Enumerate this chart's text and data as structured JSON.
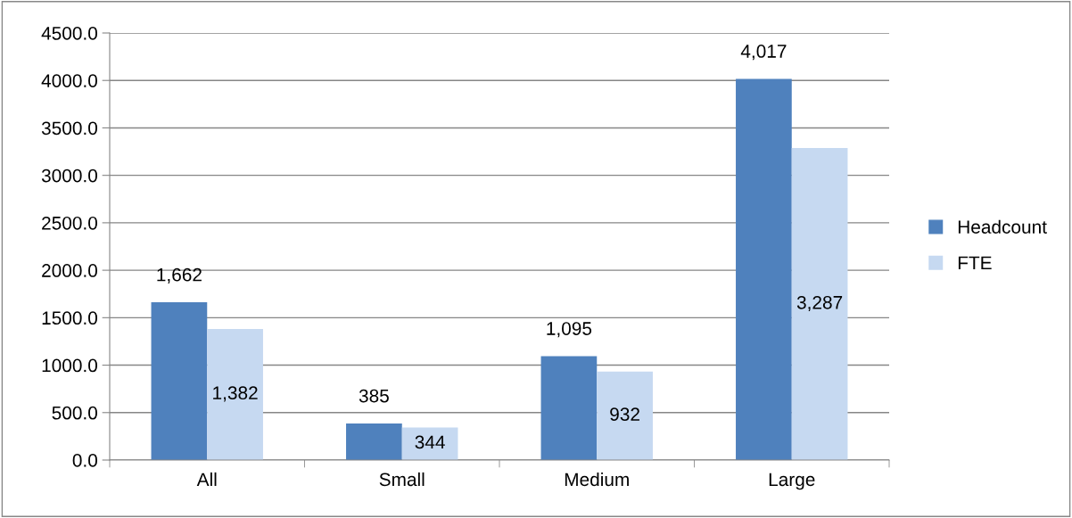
{
  "chart_data": {
    "type": "bar",
    "categories": [
      "All",
      "Small",
      "Medium",
      "Large"
    ],
    "series": [
      {
        "name": "Headcount",
        "color": "#4f81bd",
        "values": [
          1662,
          385,
          1095,
          4017
        ],
        "value_labels": [
          "1,662",
          "385",
          "1,095",
          "4,017"
        ]
      },
      {
        "name": "FTE",
        "color": "#c6d9f1",
        "values": [
          1382,
          344,
          932,
          3287
        ],
        "value_labels": [
          "1,382",
          "344",
          "932",
          "3,287"
        ]
      }
    ],
    "ylim": [
      0,
      4500
    ],
    "yticks": [
      {
        "value": 0,
        "label": "0.0"
      },
      {
        "value": 500,
        "label": "500.0"
      },
      {
        "value": 1000,
        "label": "1000.0"
      },
      {
        "value": 1500,
        "label": "1500.0"
      },
      {
        "value": 2000,
        "label": "2000.0"
      },
      {
        "value": 2500,
        "label": "2500.0"
      },
      {
        "value": 3000,
        "label": "3000.0"
      },
      {
        "value": 3500,
        "label": "3500.0"
      },
      {
        "value": 4000,
        "label": "4000.0"
      },
      {
        "value": 4500,
        "label": "4500.0"
      }
    ],
    "grid": "y",
    "legend": "right"
  }
}
